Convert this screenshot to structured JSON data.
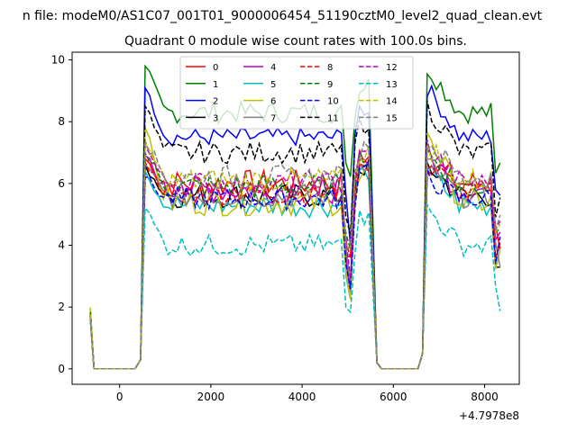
{
  "chart_data": {
    "type": "line",
    "suptitle": "n file: modeM0/AS1C07_001T01_9000006454_51190cztM0_level2_quad_clean.evt",
    "title": "Quadrant 0 module wise count rates with 100.0s bins.",
    "xlabel": "",
    "ylabel": "",
    "x_offset_label": "+4.7978e8",
    "xlim": [
      -1040,
      8760
    ],
    "ylim": [
      -0.5,
      10.25
    ],
    "xticks": [
      0,
      2000,
      4000,
      6000,
      8000
    ],
    "xtick_labels": [
      "0",
      "2000",
      "4000",
      "6000",
      "8000"
    ],
    "yticks": [
      0,
      2,
      4,
      6,
      8,
      10
    ],
    "ytick_labels": [
      "0",
      "2",
      "4",
      "6",
      "8",
      "10"
    ],
    "legend_location": "upper center",
    "legend_columns": 4,
    "series": [
      {
        "name": "0",
        "color": "#ff0000",
        "dash": "solid",
        "base": 6.0,
        "peak": 6.8,
        "amp": 0.45
      },
      {
        "name": "1",
        "color": "#008000",
        "dash": "solid",
        "base": 8.3,
        "peak": 9.8,
        "amp": 0.35
      },
      {
        "name": "2",
        "color": "#0000ff",
        "dash": "solid",
        "base": 7.5,
        "peak": 9.1,
        "amp": 0.3
      },
      {
        "name": "3",
        "color": "#000000",
        "dash": "solid",
        "base": 5.6,
        "peak": 6.6,
        "amp": 0.4
      },
      {
        "name": "4",
        "color": "#bf00bf",
        "dash": "solid",
        "base": 5.8,
        "peak": 6.9,
        "amp": 0.45
      },
      {
        "name": "5",
        "color": "#00bfbf",
        "dash": "solid",
        "base": 5.3,
        "peak": 6.4,
        "amp": 0.4
      },
      {
        "name": "6",
        "color": "#bfbf00",
        "dash": "solid",
        "base": 5.4,
        "peak": 7.8,
        "amp": 0.45
      },
      {
        "name": "7",
        "color": "#808080",
        "dash": "solid",
        "base": 5.6,
        "peak": 6.6,
        "amp": 0.4
      },
      {
        "name": "8",
        "color": "#ff0000",
        "dash": "dashed",
        "base": 5.7,
        "peak": 6.7,
        "amp": 0.4
      },
      {
        "name": "9",
        "color": "#008000",
        "dash": "dashed",
        "base": 5.9,
        "peak": 7.0,
        "amp": 0.4
      },
      {
        "name": "10",
        "color": "#0000ff",
        "dash": "dashed",
        "base": 5.5,
        "peak": 6.2,
        "amp": 0.35
      },
      {
        "name": "11",
        "color": "#000000",
        "dash": "dashed",
        "base": 7.0,
        "peak": 8.5,
        "amp": 0.35
      },
      {
        "name": "12",
        "color": "#bf00bf",
        "dash": "dashed",
        "base": 6.0,
        "peak": 7.2,
        "amp": 0.4
      },
      {
        "name": "13",
        "color": "#00bfbf",
        "dash": "dashed",
        "base": 4.0,
        "peak": 5.2,
        "amp": 0.35
      },
      {
        "name": "14",
        "color": "#bfbf00",
        "dash": "dashed",
        "base": 6.1,
        "peak": 7.3,
        "amp": 0.4
      },
      {
        "name": "15",
        "color": "#808080",
        "dash": "dashed",
        "base": 6.2,
        "peak": 7.4,
        "amp": 0.4
      }
    ],
    "segments": [
      {
        "x_start": -640,
        "x_end": -560,
        "start_value": 1.9,
        "note": "drop to zero"
      },
      {
        "x_start": -560,
        "x_end": 360,
        "value": 0
      },
      {
        "x_start": 560,
        "x_end": 5540,
        "note": "active interval, dip near 5000"
      },
      {
        "x_start": 5740,
        "x_end": 6560,
        "value": 0
      },
      {
        "x_start": 6740,
        "x_end": 8340,
        "note": "active interval, decreasing to end"
      }
    ],
    "bin_width": 100
  }
}
